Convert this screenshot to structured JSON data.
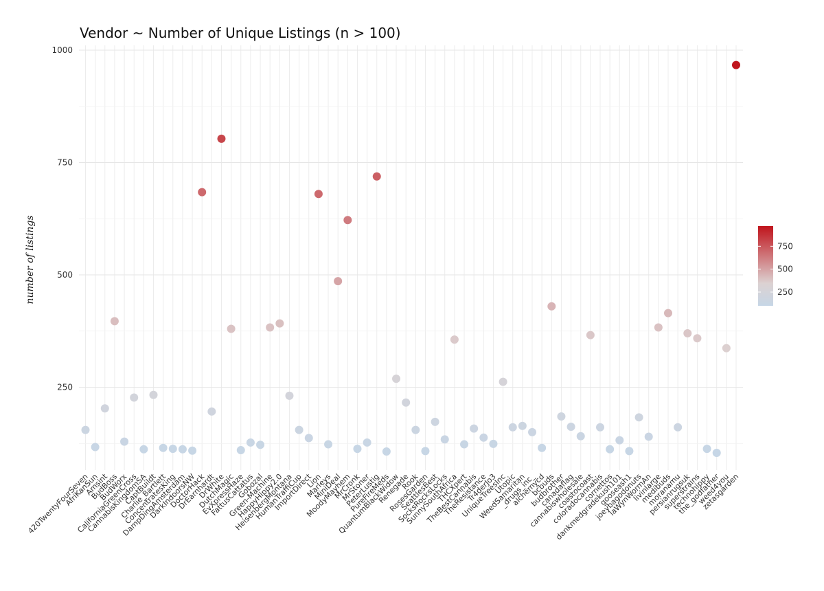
{
  "chart_data": {
    "type": "scatter",
    "title": "Vendor ~ Number of Unique Listings (n > 100)",
    "xlabel": "",
    "ylabel": "number of listings",
    "ylim": [
      80,
      1010
    ],
    "yticks": [
      250,
      500,
      750,
      1000
    ],
    "grid": true,
    "legend": {
      "placement": "right",
      "ticks": [
        250,
        500,
        750
      ]
    },
    "colors": {
      "low": "#c6d6e6",
      "mid": "#dcd2d2",
      "high": "#c0141c"
    },
    "categories": [
      "420TwentyFourSeven",
      "AfriKanSun",
      "Amsint",
      "BudBoss",
      "BudWorx",
      "CaliforniaGreenCross",
      "CannabisKingdomSA",
      "CaptBuildt",
      "Charlie_Bartlett",
      "ConcentratesKing",
      "DampDingAmsterdam",
      "DarkIndoorsNW",
      "DoctorHack",
      "DrEarnhardt",
      "DrWhite",
      "DutchMagic",
      "EvXpressHaze",
      "FattusCattatus",
      "Gobozal",
      "Green-Machine",
      "HappyHippy2.0",
      "HeisenbergMontana",
      "HumanTraffiCup",
      "ImportDirect",
      "Lion",
      "Marleys",
      "MiniDeal",
      "MoodyMayhem",
      "MrCronk",
      "MrStoner",
      "PeterLustig",
      "PureFireMeds",
      "QuantumBlackWidow",
      "Renegade",
      "Rook",
      "RosesGarden",
      "SeattlesBest",
      "SocksRocksLocks",
      "SunnySouthAfrica",
      "THCXpert",
      "TheBestCannabis",
      "TheResistance",
      "Tr4derJo3",
      "UniqueTreesInc",
      "Utopic",
      "WeedSamaritan",
      "_drugs_inc_",
      "alchemycd",
      "bcbuds",
      "budbrother",
      "canadaflag",
      "cannabiswholesale",
      "coastocoast",
      "coloradocannabis",
      "cornettos",
      "dankmedgradekush101",
      "gooseash1",
      "joeybagodonuts",
      "laWynWormAn",
      "livinlarge",
      "medibuds",
      "moranamu",
      "persianrugsuk",
      "superstrains",
      "technohippy",
      "the_godfather",
      "weed4you",
      "zetasgarden"
    ],
    "values": [
      155,
      117,
      203,
      397,
      129,
      227,
      112,
      233,
      115,
      113,
      112,
      109,
      684,
      196,
      803,
      380,
      110,
      127,
      122,
      383,
      392,
      231,
      155,
      137,
      680,
      123,
      486,
      622,
      113,
      127,
      719,
      107,
      269,
      216,
      155,
      108,
      173,
      134,
      356,
      123,
      158,
      138,
      124,
      262,
      161,
      164,
      150,
      115,
      430,
      185,
      162,
      141,
      366,
      161,
      112,
      132,
      108,
      183,
      140,
      383,
      415,
      161,
      370,
      359,
      113,
      104,
      337,
      967
    ],
    "extra_first_point": {
      "label": "",
      "value": 0
    }
  }
}
